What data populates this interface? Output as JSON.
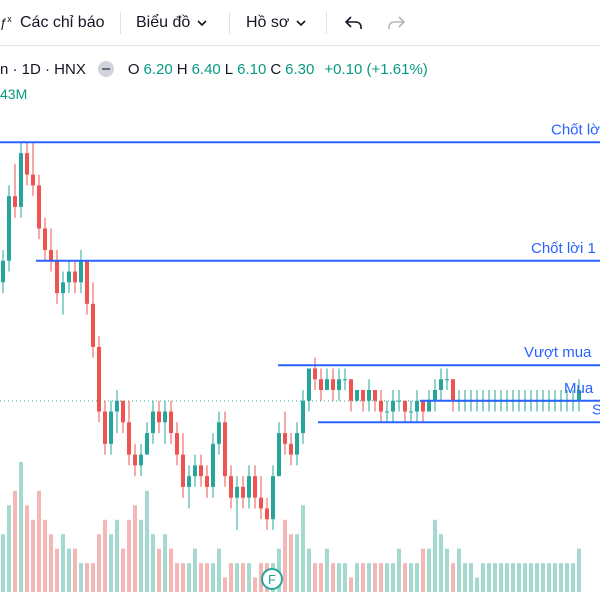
{
  "toolbar": {
    "indicators_label": "Các chỉ báo",
    "chart_menu_label": "Biểu đồ",
    "profile_menu_label": "Hồ sơ"
  },
  "legend": {
    "symbol": "n · 1D · HNX",
    "open_key": "O",
    "open": "6.20",
    "high_key": "H",
    "high": "6.40",
    "low_key": "L",
    "low": "6.10",
    "close_key": "C",
    "close": "6.30",
    "change": "+0.10 (+1.61%)",
    "volume": "43M"
  },
  "colors": {
    "up": "#26a69a",
    "down": "#ef5350",
    "line": "#2962ff",
    "up_vol": "#a3d9cf",
    "down_vol": "#f5b7b5"
  },
  "drawings": [
    {
      "label": "Chốt lời",
      "price": 8.6
    },
    {
      "label": "Chốt lời 1",
      "price": 7.5
    },
    {
      "label": "Vượt mua",
      "price": 6.53
    },
    {
      "label": "Mua",
      "price": 6.2
    },
    {
      "label": "S",
      "price": 6.0
    }
  ],
  "event_badge": "F",
  "chart_data": {
    "type": "candlestick",
    "candles": [
      [
        7.3,
        7.6,
        7.2,
        7.5
      ],
      [
        7.5,
        8.2,
        7.4,
        8.1
      ],
      [
        8.1,
        8.4,
        7.9,
        8.0
      ],
      [
        8.0,
        8.6,
        7.9,
        8.5
      ],
      [
        8.5,
        8.6,
        8.2,
        8.3
      ],
      [
        8.3,
        8.6,
        8.1,
        8.2
      ],
      [
        8.2,
        8.3,
        7.7,
        7.8
      ],
      [
        7.8,
        7.9,
        7.5,
        7.6
      ],
      [
        7.6,
        7.8,
        7.4,
        7.5
      ],
      [
        7.5,
        7.6,
        7.1,
        7.2
      ],
      [
        7.2,
        7.4,
        7.0,
        7.3
      ],
      [
        7.3,
        7.5,
        7.2,
        7.4
      ],
      [
        7.4,
        7.5,
        7.2,
        7.3
      ],
      [
        7.3,
        7.6,
        7.2,
        7.5
      ],
      [
        7.5,
        7.5,
        7.0,
        7.1
      ],
      [
        7.1,
        7.3,
        6.6,
        6.7
      ],
      [
        6.7,
        6.8,
        6.0,
        6.1
      ],
      [
        6.1,
        6.2,
        5.7,
        5.8
      ],
      [
        5.8,
        6.2,
        5.7,
        6.1
      ],
      [
        6.1,
        6.3,
        5.9,
        6.2
      ],
      [
        6.2,
        6.2,
        5.9,
        6.0
      ],
      [
        6.0,
        6.2,
        5.6,
        5.7
      ],
      [
        5.7,
        5.8,
        5.5,
        5.6
      ],
      [
        5.6,
        5.8,
        5.5,
        5.7
      ],
      [
        5.7,
        6.0,
        5.7,
        5.9
      ],
      [
        5.9,
        6.2,
        5.8,
        6.1
      ],
      [
        6.1,
        6.2,
        5.9,
        6.0
      ],
      [
        6.0,
        6.2,
        5.8,
        6.1
      ],
      [
        6.1,
        6.2,
        5.8,
        5.9
      ],
      [
        5.9,
        6.0,
        5.6,
        5.7
      ],
      [
        5.7,
        5.9,
        5.3,
        5.4
      ],
      [
        5.4,
        5.6,
        5.2,
        5.5
      ],
      [
        5.5,
        5.7,
        5.4,
        5.6
      ],
      [
        5.6,
        5.7,
        5.4,
        5.5
      ],
      [
        5.5,
        5.6,
        5.3,
        5.4
      ],
      [
        5.4,
        5.9,
        5.3,
        5.8
      ],
      [
        5.8,
        6.1,
        5.7,
        6.0
      ],
      [
        6.0,
        6.1,
        5.4,
        5.5
      ],
      [
        5.5,
        5.6,
        5.2,
        5.3
      ],
      [
        5.3,
        5.5,
        5.0,
        5.4
      ],
      [
        5.4,
        5.5,
        5.2,
        5.3
      ],
      [
        5.3,
        5.6,
        5.2,
        5.5
      ],
      [
        5.5,
        5.6,
        5.2,
        5.3
      ],
      [
        5.3,
        5.5,
        5.1,
        5.2
      ],
      [
        5.2,
        5.3,
        5.0,
        5.1
      ],
      [
        5.1,
        5.6,
        5.0,
        5.5
      ],
      [
        5.5,
        6.0,
        5.5,
        5.9
      ],
      [
        5.9,
        6.1,
        5.7,
        5.8
      ],
      [
        5.8,
        5.9,
        5.6,
        5.7
      ],
      [
        5.7,
        6.0,
        5.6,
        5.9
      ],
      [
        5.9,
        6.3,
        5.8,
        6.2
      ],
      [
        6.2,
        6.5,
        6.1,
        6.5
      ],
      [
        6.5,
        6.6,
        6.3,
        6.4
      ],
      [
        6.4,
        6.5,
        6.2,
        6.3
      ],
      [
        6.3,
        6.5,
        6.3,
        6.4
      ],
      [
        6.4,
        6.5,
        6.2,
        6.3
      ],
      [
        6.3,
        6.5,
        6.2,
        6.4
      ],
      [
        6.4,
        6.5,
        6.3,
        6.4
      ],
      [
        6.4,
        6.4,
        6.1,
        6.2
      ],
      [
        6.2,
        6.3,
        6.2,
        6.3
      ],
      [
        6.3,
        6.3,
        6.1,
        6.2
      ],
      [
        6.2,
        6.4,
        6.1,
        6.3
      ],
      [
        6.3,
        6.3,
        6.1,
        6.2
      ],
      [
        6.2,
        6.3,
        6.0,
        6.1
      ],
      [
        6.1,
        6.2,
        6.0,
        6.1
      ],
      [
        6.1,
        6.3,
        6.0,
        6.2
      ],
      [
        6.2,
        6.3,
        6.1,
        6.2
      ],
      [
        6.2,
        6.2,
        6.0,
        6.1
      ],
      [
        6.1,
        6.2,
        6.0,
        6.1
      ],
      [
        6.1,
        6.3,
        6.0,
        6.2
      ],
      [
        6.2,
        6.2,
        6.0,
        6.1
      ],
      [
        6.1,
        6.3,
        6.1,
        6.2
      ],
      [
        6.2,
        6.4,
        6.1,
        6.3
      ],
      [
        6.3,
        6.5,
        6.2,
        6.4
      ],
      [
        6.4,
        6.5,
        6.3,
        6.4
      ],
      [
        6.4,
        6.4,
        6.1,
        6.2
      ],
      [
        6.2,
        6.3,
        6.1,
        6.2
      ],
      [
        6.2,
        6.3,
        6.1,
        6.2
      ],
      [
        6.2,
        6.3,
        6.1,
        6.2
      ],
      [
        6.2,
        6.3,
        6.1,
        6.2
      ],
      [
        6.2,
        6.3,
        6.1,
        6.2
      ],
      [
        6.2,
        6.3,
        6.1,
        6.2
      ],
      [
        6.2,
        6.3,
        6.1,
        6.2
      ],
      [
        6.2,
        6.3,
        6.1,
        6.2
      ],
      [
        6.2,
        6.3,
        6.1,
        6.2
      ],
      [
        6.2,
        6.3,
        6.1,
        6.2
      ],
      [
        6.2,
        6.3,
        6.1,
        6.2
      ],
      [
        6.2,
        6.3,
        6.1,
        6.2
      ],
      [
        6.2,
        6.3,
        6.1,
        6.2
      ],
      [
        6.2,
        6.3,
        6.1,
        6.2
      ],
      [
        6.2,
        6.3,
        6.1,
        6.2
      ],
      [
        6.2,
        6.3,
        6.1,
        6.2
      ],
      [
        6.2,
        6.3,
        6.1,
        6.2
      ],
      [
        6.2,
        6.3,
        6.1,
        6.2
      ],
      [
        6.2,
        6.3,
        6.1,
        6.2
      ],
      [
        6.2,
        6.3,
        6.1,
        6.2
      ],
      [
        6.2,
        6.4,
        6.1,
        6.3
      ]
    ],
    "volumes": [
      4,
      6,
      7,
      9,
      6,
      5,
      7,
      5,
      4,
      3,
      4,
      3,
      3,
      2,
      2,
      2,
      4,
      5,
      4,
      5,
      3,
      5,
      6,
      5,
      7,
      4,
      3,
      4,
      3,
      2,
      2,
      2,
      3,
      2,
      2,
      2,
      3,
      1,
      2,
      2,
      2,
      2,
      1,
      2,
      2,
      2,
      3,
      5,
      4,
      4,
      6,
      3,
      2,
      2,
      3,
      2,
      2,
      2,
      1,
      2,
      2,
      2,
      2,
      2,
      2,
      2,
      3,
      2,
      2,
      2,
      3,
      3,
      5,
      4,
      3,
      2,
      3,
      2,
      2,
      1,
      2,
      2,
      2,
      2,
      2,
      2,
      2,
      2,
      2,
      2,
      2,
      2,
      2,
      2,
      2,
      2,
      3
    ],
    "price_range": [
      5.0,
      8.9
    ]
  }
}
